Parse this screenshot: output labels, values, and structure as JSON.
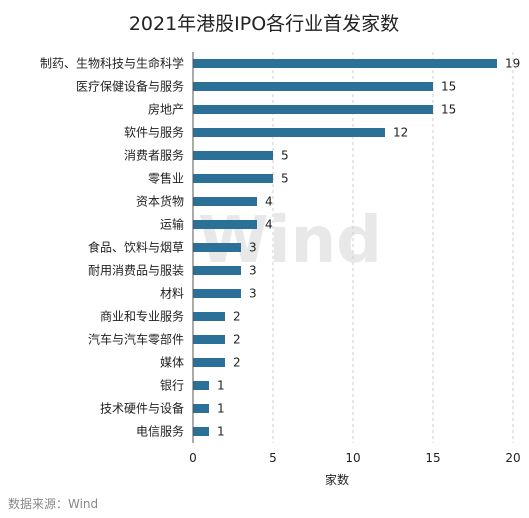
{
  "chart_data": {
    "type": "bar",
    "orientation": "horizontal",
    "title": "2021年港股IPO各行业首发家数",
    "xlabel": "家数",
    "xlim": [
      0,
      20
    ],
    "xticks": [
      "0",
      "5",
      "10",
      "15",
      "20"
    ],
    "grid": "vertical dashed",
    "color": "#2b7097",
    "categories": [
      "制药、生物科技与生命科学",
      "医疗保健设备与服务",
      "房地产",
      "软件与服务",
      "消费者服务",
      "零售业",
      "资本货物",
      "运输",
      "食品、饮料与烟草",
      "耐用消费品与服装",
      "材料",
      "商业和专业服务",
      "汽车与汽车零部件",
      "媒体",
      "银行",
      "技术硬件与设备",
      "电信服务"
    ],
    "values": [
      19,
      15,
      15,
      12,
      5,
      5,
      4,
      4,
      3,
      3,
      3,
      2,
      2,
      2,
      1,
      1,
      1
    ],
    "watermark": "Wind",
    "source": "数据来源：Wind"
  }
}
